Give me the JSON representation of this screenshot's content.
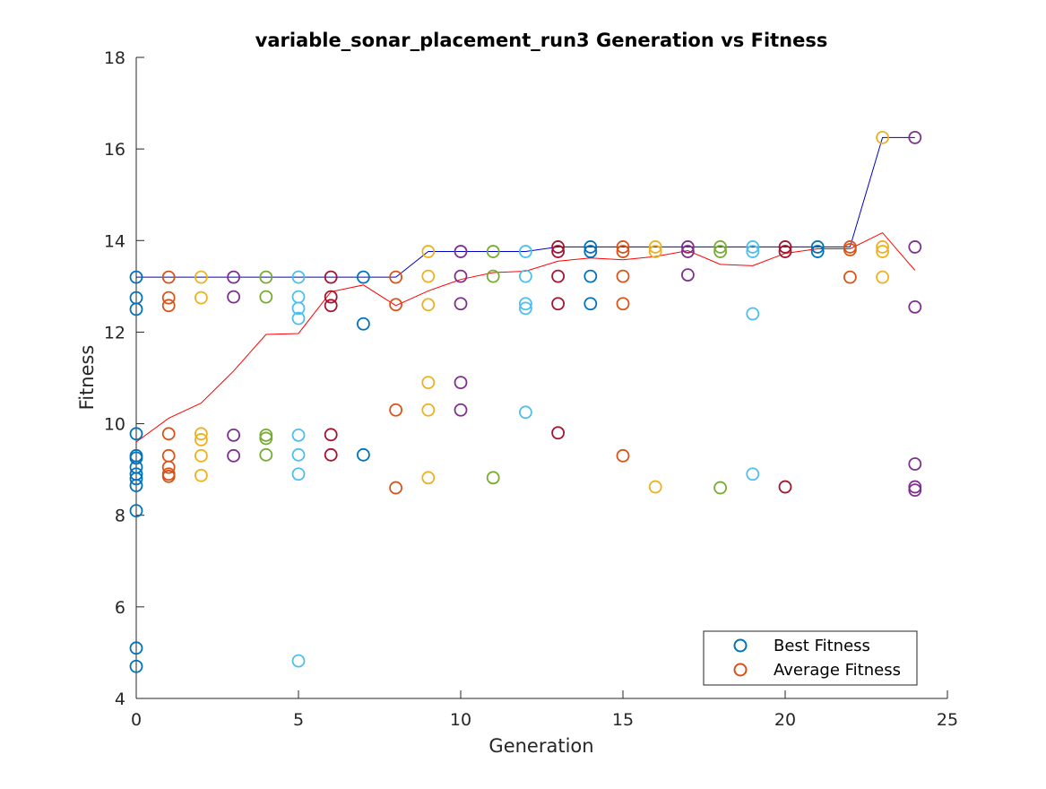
{
  "chart_data": {
    "type": "scatter",
    "title": "variable_sonar_placement_run3 Generation vs Fitness",
    "xlabel": "Generation",
    "ylabel": "Fitness",
    "xlim": [
      0,
      25
    ],
    "ylim": [
      4,
      18
    ],
    "xticks": [
      "0",
      "5",
      "10",
      "15",
      "20",
      "25"
    ],
    "yticks": [
      "4",
      "6",
      "8",
      "10",
      "12",
      "14",
      "16",
      "18"
    ],
    "grid": false,
    "legend_position": "bottom-right",
    "legend": [
      {
        "label": "Best Fitness",
        "color": "#0072BD"
      },
      {
        "label": "Average Fitness",
        "color": "#D95319"
      }
    ],
    "generation_colors": [
      "#0072BD",
      "#D95319",
      "#EDB120",
      "#7E2F8E",
      "#77AC30",
      "#4DBEEE",
      "#A2142F"
    ],
    "best_line": {
      "color": "#0000CC",
      "x": [
        0,
        1,
        2,
        3,
        4,
        5,
        6,
        7,
        8,
        9,
        10,
        11,
        12,
        13,
        14,
        15,
        16,
        17,
        18,
        19,
        20,
        21,
        22,
        23,
        24
      ],
      "y": [
        13.2,
        13.2,
        13.2,
        13.2,
        13.2,
        13.2,
        13.2,
        13.2,
        13.2,
        13.76,
        13.76,
        13.76,
        13.76,
        13.86,
        13.86,
        13.86,
        13.86,
        13.86,
        13.86,
        13.86,
        13.86,
        13.86,
        13.86,
        16.25,
        16.25
      ]
    },
    "average_line": {
      "color": "#FF0000",
      "x": [
        0,
        1,
        2,
        3,
        4,
        5,
        6,
        7,
        8,
        9,
        10,
        11,
        12,
        13,
        14,
        15,
        16,
        17,
        18,
        19,
        20,
        21,
        22,
        23,
        24
      ],
      "y": [
        9.6,
        10.12,
        10.45,
        11.15,
        11.95,
        11.97,
        12.88,
        13.03,
        12.58,
        12.9,
        13.15,
        13.3,
        13.33,
        13.55,
        13.62,
        13.58,
        13.65,
        13.78,
        13.48,
        13.45,
        13.72,
        13.82,
        13.82,
        14.17,
        13.35
      ]
    },
    "generations": [
      {
        "generation": 0,
        "values": [
          13.2,
          12.75,
          12.5,
          9.78,
          9.3,
          9.25,
          9.05,
          8.9,
          8.8,
          8.65,
          8.1,
          5.1,
          4.7
        ]
      },
      {
        "generation": 1,
        "values": [
          13.2,
          12.75,
          12.58,
          9.78,
          9.3,
          9.05,
          8.9,
          8.85
        ]
      },
      {
        "generation": 2,
        "values": [
          13.2,
          12.75,
          9.78,
          9.65,
          9.3,
          8.87
        ]
      },
      {
        "generation": 3,
        "values": [
          13.2,
          12.77,
          9.75,
          9.3
        ]
      },
      {
        "generation": 4,
        "values": [
          13.2,
          12.77,
          9.75,
          9.68,
          9.32
        ]
      },
      {
        "generation": 5,
        "values": [
          13.2,
          12.77,
          12.52,
          12.3,
          9.75,
          9.32,
          8.9,
          4.82
        ]
      },
      {
        "generation": 6,
        "values": [
          13.2,
          12.77,
          12.58,
          9.76,
          9.32
        ]
      },
      {
        "generation": 7,
        "values": [
          13.2,
          12.18,
          9.32
        ]
      },
      {
        "generation": 8,
        "values": [
          13.2,
          12.6,
          10.3,
          8.6
        ]
      },
      {
        "generation": 9,
        "values": [
          13.76,
          13.22,
          12.6,
          10.9,
          10.3,
          8.82
        ]
      },
      {
        "generation": 10,
        "values": [
          13.76,
          13.22,
          12.62,
          10.9,
          10.3
        ]
      },
      {
        "generation": 11,
        "values": [
          13.76,
          13.22,
          8.82
        ]
      },
      {
        "generation": 12,
        "values": [
          13.76,
          13.22,
          12.62,
          12.52,
          10.25
        ]
      },
      {
        "generation": 13,
        "values": [
          13.86,
          13.76,
          13.22,
          12.62,
          9.8
        ]
      },
      {
        "generation": 14,
        "values": [
          13.86,
          13.76,
          13.22,
          12.62
        ]
      },
      {
        "generation": 15,
        "values": [
          13.86,
          13.76,
          13.22,
          12.62,
          9.3
        ]
      },
      {
        "generation": 16,
        "values": [
          13.86,
          13.76,
          8.62
        ]
      },
      {
        "generation": 17,
        "values": [
          13.86,
          13.76,
          13.25
        ]
      },
      {
        "generation": 18,
        "values": [
          13.86,
          13.76,
          8.6
        ]
      },
      {
        "generation": 19,
        "values": [
          13.86,
          13.76,
          12.4,
          8.9
        ]
      },
      {
        "generation": 20,
        "values": [
          13.86,
          13.76,
          8.62
        ]
      },
      {
        "generation": 21,
        "values": [
          13.86,
          13.76
        ]
      },
      {
        "generation": 22,
        "values": [
          13.86,
          13.8,
          13.2
        ]
      },
      {
        "generation": 23,
        "values": [
          16.25,
          13.86,
          13.76,
          13.2
        ]
      },
      {
        "generation": 24,
        "values": [
          16.25,
          13.86,
          12.55,
          9.12,
          8.62,
          8.55
        ]
      }
    ]
  }
}
